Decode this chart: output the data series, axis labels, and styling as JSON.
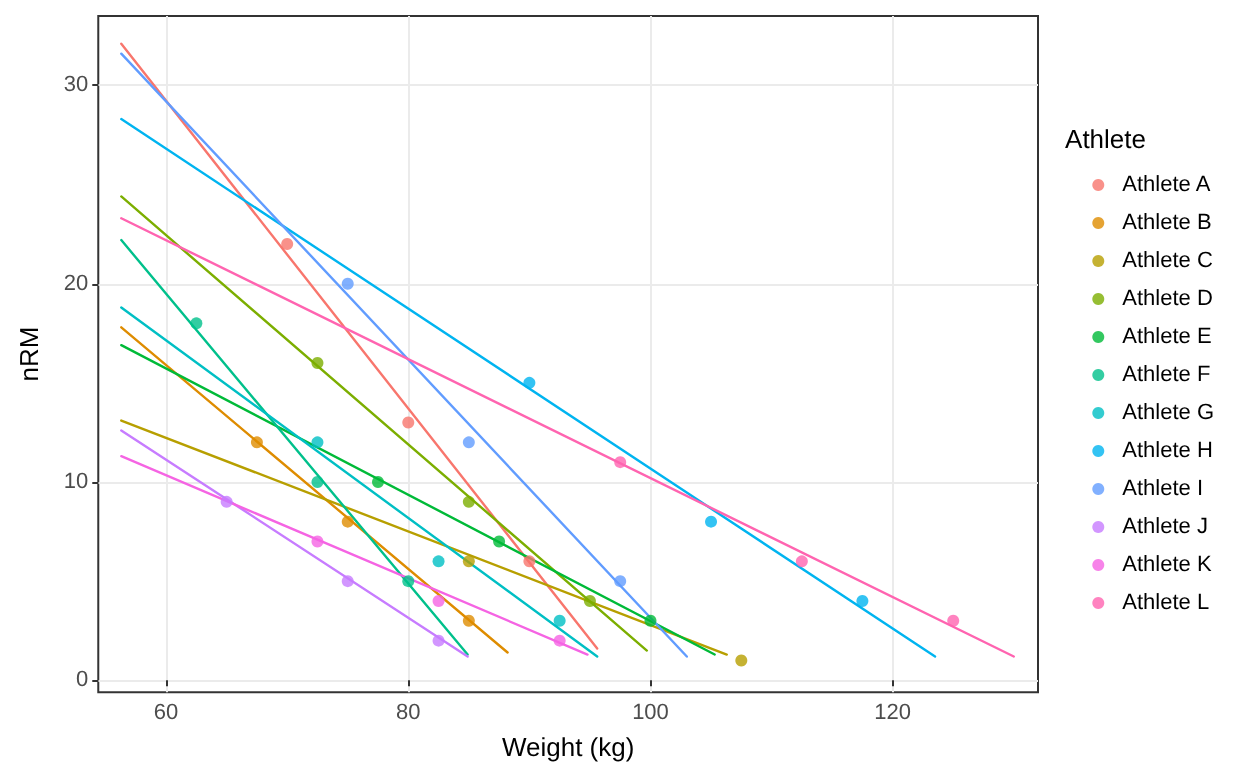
{
  "chart_data": {
    "type": "scatter",
    "xlabel": "Weight (kg)",
    "ylabel": "nRM",
    "legend_title": "Athlete",
    "xlim": [
      54.4,
      132
    ],
    "ylim": [
      -0.6,
      33.5
    ],
    "xticks": [
      60,
      80,
      100,
      120
    ],
    "yticks": [
      0,
      10,
      20,
      30
    ],
    "grid": true,
    "legend": "right",
    "marker": "circle",
    "series": [
      {
        "name": "Athlete A",
        "color": "#f8766d",
        "x": [
          70,
          80,
          90
        ],
        "values": [
          22,
          13,
          6
        ]
      },
      {
        "name": "Athlete B",
        "color": "#de8c00",
        "x": [
          67.5,
          75,
          85
        ],
        "values": [
          12,
          8,
          3
        ]
      },
      {
        "name": "Athlete C",
        "color": "#b79f00",
        "x": [
          85,
          107.5
        ],
        "values": [
          6,
          1
        ]
      },
      {
        "name": "Athlete D",
        "color": "#7cae00",
        "x": [
          72.5,
          85,
          95
        ],
        "values": [
          16,
          9,
          4
        ]
      },
      {
        "name": "Athlete E",
        "color": "#00ba38",
        "x": [
          77.5,
          87.5,
          100
        ],
        "values": [
          10,
          7,
          3
        ]
      },
      {
        "name": "Athlete F",
        "color": "#00c08b",
        "x": [
          62.5,
          72.5,
          80
        ],
        "values": [
          18,
          10,
          5
        ]
      },
      {
        "name": "Athlete G",
        "color": "#00bfc4",
        "x": [
          72.5,
          82.5,
          92.5
        ],
        "values": [
          12,
          6,
          3
        ]
      },
      {
        "name": "Athlete H",
        "color": "#00b4f0",
        "x": [
          90,
          105,
          117.5
        ],
        "values": [
          15,
          8,
          4
        ]
      },
      {
        "name": "Athlete I",
        "color": "#619cff",
        "x": [
          75,
          85,
          97.5
        ],
        "values": [
          20,
          12,
          5
        ]
      },
      {
        "name": "Athlete J",
        "color": "#c77cff",
        "x": [
          65,
          75,
          82.5
        ],
        "values": [
          9,
          5,
          2
        ]
      },
      {
        "name": "Athlete K",
        "color": "#f564e3",
        "x": [
          72.5,
          82.5,
          92.5
        ],
        "values": [
          7,
          4,
          2
        ]
      },
      {
        "name": "Athlete L",
        "color": "#ff64b0",
        "x": [
          97.5,
          112.5,
          125
        ],
        "values": [
          11,
          6,
          3
        ]
      },
      {
        "color": "#f8766d",
        "type": "line",
        "marker": "none",
        "x": [
          56.3,
          95.6
        ],
        "values": [
          32.1,
          1.6
        ]
      },
      {
        "color": "#de8c00",
        "type": "line",
        "marker": "none",
        "x": [
          56.3,
          88.2
        ],
        "values": [
          17.8,
          1.4
        ]
      },
      {
        "color": "#b79f00",
        "type": "line",
        "marker": "none",
        "x": [
          56.3,
          106.3
        ],
        "values": [
          13.1,
          1.3
        ]
      },
      {
        "color": "#7cae00",
        "type": "line",
        "marker": "none",
        "x": [
          56.3,
          99.7
        ],
        "values": [
          24.4,
          1.5
        ]
      },
      {
        "color": "#00ba38",
        "type": "line",
        "marker": "none",
        "x": [
          56.3,
          105.3
        ],
        "values": [
          16.9,
          1.3
        ]
      },
      {
        "color": "#00c08b",
        "type": "line",
        "marker": "none",
        "x": [
          56.3,
          84.9
        ],
        "values": [
          22.2,
          1.3
        ]
      },
      {
        "color": "#00bfc4",
        "type": "line",
        "marker": "none",
        "x": [
          56.3,
          95.6
        ],
        "values": [
          18.8,
          1.2
        ]
      },
      {
        "color": "#00b4f0",
        "type": "line",
        "marker": "none",
        "x": [
          56.3,
          123.5
        ],
        "values": [
          28.3,
          1.2
        ]
      },
      {
        "color": "#619cff",
        "type": "line",
        "marker": "none",
        "x": [
          56.3,
          103
        ],
        "values": [
          31.6,
          1.2
        ]
      },
      {
        "color": "#c77cff",
        "type": "line",
        "marker": "none",
        "x": [
          56.3,
          84.9
        ],
        "values": [
          12.6,
          1.2
        ]
      },
      {
        "color": "#f564e3",
        "type": "line",
        "marker": "none",
        "x": [
          56.3,
          94.8
        ],
        "values": [
          11.3,
          1.3
        ]
      },
      {
        "color": "#ff64b0",
        "type": "line",
        "marker": "none",
        "x": [
          56.3,
          130
        ],
        "values": [
          23.3,
          1.2
        ]
      }
    ]
  }
}
